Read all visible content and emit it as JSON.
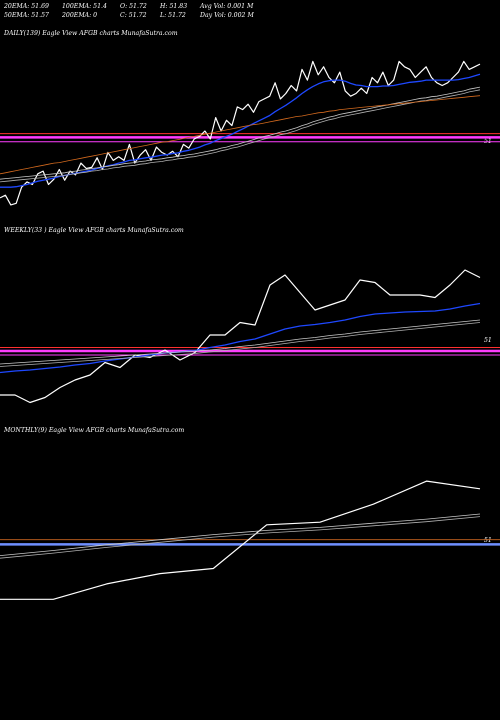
{
  "header": {
    "row1": [
      "20EMA: 51.69",
      "100EMA: 51.4",
      "O: 51.72",
      "H: 51.83",
      "Avg Vol: 0.001 M"
    ],
    "row2": [
      "50EMA: 51.57",
      "200EMA: 0",
      "C: 51.72",
      "L: 51.72",
      "Day Vol: 0.002  M"
    ]
  },
  "colors": {
    "background": "#000000",
    "price": "#ffffff",
    "ema_fast": "#1e48ff",
    "ema_mid": "#c8c8c8",
    "ema_slow": "#b0b0b0",
    "ema_long": "#d2691e",
    "level_magenta": "#ff3dff",
    "level_red": "#ff3030",
    "level_blue": "#6f8fff",
    "level_orange": "#c86420"
  },
  "chart_data": [
    {
      "type": "line",
      "title": "DAILY(139) Eagle   View  AFGB charts MunafaSutra.com",
      "level_label": "51",
      "series": [
        {
          "role": "price",
          "color": "#ffffff",
          "width": 1.2,
          "values": [
            49.85,
            49.9,
            49.72,
            49.75,
            50.05,
            50.15,
            50.1,
            50.3,
            50.35,
            50.1,
            50.2,
            50.38,
            50.18,
            50.35,
            50.28,
            50.5,
            50.4,
            50.42,
            50.6,
            50.38,
            50.7,
            50.55,
            50.62,
            50.55,
            50.85,
            50.5,
            50.65,
            50.75,
            50.55,
            50.8,
            50.7,
            50.65,
            50.72,
            50.62,
            50.85,
            50.78,
            50.95,
            51.0,
            51.1,
            50.95,
            51.35,
            51.1,
            51.3,
            51.2,
            51.55,
            51.5,
            51.6,
            51.45,
            51.65,
            51.7,
            51.75,
            52.0,
            51.7,
            51.8,
            51.95,
            51.85,
            52.25,
            52.05,
            52.4,
            52.15,
            52.3,
            52.1,
            52.0,
            52.2,
            51.85,
            51.75,
            51.8,
            51.9,
            51.8,
            52.1,
            52.0,
            52.2,
            51.95,
            52.05,
            52.4,
            52.3,
            52.25,
            52.1,
            52.2,
            52.3,
            52.1,
            52.0,
            51.95,
            52.0,
            52.1,
            52.2,
            52.4,
            52.25,
            52.3,
            52.35
          ]
        },
        {
          "role": "ema_fast",
          "color": "#1e48ff",
          "width": 1.3,
          "values": [
            50.05,
            50.05,
            50.05,
            50.06,
            50.08,
            50.1,
            50.13,
            50.16,
            50.18,
            50.2,
            50.22,
            50.25,
            50.27,
            50.29,
            50.31,
            50.33,
            50.35,
            50.37,
            50.4,
            50.42,
            50.45,
            50.47,
            50.5,
            50.52,
            50.55,
            50.56,
            50.58,
            50.6,
            50.61,
            50.63,
            50.65,
            50.66,
            50.68,
            50.69,
            50.72,
            50.74,
            50.77,
            50.8,
            50.84,
            50.87,
            50.92,
            50.96,
            51.0,
            51.04,
            51.09,
            51.14,
            51.19,
            51.24,
            51.29,
            51.34,
            51.39,
            51.46,
            51.52,
            51.58,
            51.65,
            51.72,
            51.8,
            51.87,
            51.93,
            51.98,
            52.02,
            52.04,
            52.05,
            52.05,
            52.03,
            51.99,
            51.96,
            51.95,
            51.93,
            51.93,
            51.93,
            51.94,
            51.94,
            51.95,
            51.97,
            51.99,
            52.01,
            52.02,
            52.03,
            52.05,
            52.05,
            52.05,
            52.05,
            52.05,
            52.05,
            52.06,
            52.08,
            52.1,
            52.13,
            52.16
          ]
        },
        {
          "role": "ema_mid",
          "color": "#c8c8c8",
          "width": 0.8,
          "values": [
            50.2,
            50.21,
            50.22,
            50.23,
            50.24,
            50.25,
            50.26,
            50.27,
            50.28,
            50.29,
            50.3,
            50.31,
            50.32,
            50.34,
            50.35,
            50.37,
            50.38,
            50.4,
            50.41,
            50.43,
            50.44,
            50.46,
            50.47,
            50.49,
            50.5,
            50.51,
            50.53,
            50.54,
            50.56,
            50.57,
            50.58,
            50.6,
            50.61,
            50.63,
            50.64,
            50.66,
            50.67,
            50.69,
            50.71,
            50.73,
            50.75,
            50.78,
            50.8,
            50.83,
            50.85,
            50.88,
            50.91,
            50.94,
            50.97,
            51.0,
            51.02,
            51.05,
            51.08,
            51.1,
            51.13,
            51.16,
            51.2,
            51.23,
            51.27,
            51.3,
            51.33,
            51.36,
            51.38,
            51.41,
            51.43,
            51.45,
            51.47,
            51.49,
            51.51,
            51.53,
            51.55,
            51.57,
            51.59,
            51.61,
            51.63,
            51.65,
            51.67,
            51.69,
            51.71,
            51.72,
            51.74,
            51.75,
            51.77,
            51.79,
            51.81,
            51.83,
            51.85,
            51.88,
            51.9,
            51.92
          ]
        },
        {
          "role": "ema_slow",
          "color": "#b0b0b0",
          "width": 0.8,
          "values": [
            50.15,
            50.16,
            50.17,
            50.18,
            50.19,
            50.2,
            50.21,
            50.22,
            50.23,
            50.24,
            50.25,
            50.26,
            50.27,
            50.29,
            50.3,
            50.32,
            50.33,
            50.35,
            50.36,
            50.38,
            50.39,
            50.41,
            50.42,
            50.44,
            50.45,
            50.46,
            50.48,
            50.49,
            50.51,
            50.52,
            50.53,
            50.55,
            50.56,
            50.58,
            50.59,
            50.61,
            50.62,
            50.64,
            50.66,
            50.68,
            50.7,
            50.73,
            50.75,
            50.78,
            50.8,
            50.83,
            50.86,
            50.89,
            50.92,
            50.95,
            50.97,
            51.0,
            51.03,
            51.05,
            51.08,
            51.11,
            51.15,
            51.18,
            51.22,
            51.25,
            51.28,
            51.31,
            51.33,
            51.36,
            51.38,
            51.4,
            51.42,
            51.44,
            51.46,
            51.48,
            51.5,
            51.52,
            51.54,
            51.56,
            51.58,
            51.6,
            51.62,
            51.64,
            51.66,
            51.67,
            51.69,
            51.7,
            51.72,
            51.74,
            51.76,
            51.78,
            51.8,
            51.83,
            51.85,
            51.87
          ]
        },
        {
          "role": "ema_long",
          "color": "#d2691e",
          "width": 0.8,
          "values": [
            50.3,
            50.32,
            50.34,
            50.36,
            50.38,
            50.4,
            50.42,
            50.44,
            50.46,
            50.48,
            50.5,
            50.51,
            50.53,
            50.55,
            50.57,
            50.59,
            50.61,
            50.63,
            50.65,
            50.67,
            50.69,
            50.71,
            50.73,
            50.75,
            50.77,
            50.79,
            50.81,
            50.83,
            50.85,
            50.87,
            50.89,
            50.9,
            50.92,
            50.94,
            50.96,
            50.98,
            51.0,
            51.02,
            51.04,
            51.06,
            51.08,
            51.1,
            51.12,
            51.14,
            51.16,
            51.18,
            51.2,
            51.22,
            51.23,
            51.25,
            51.27,
            51.29,
            51.31,
            51.33,
            51.35,
            51.37,
            51.38,
            51.4,
            51.42,
            51.44,
            51.45,
            51.47,
            51.48,
            51.5,
            51.51,
            51.52,
            51.53,
            51.54,
            51.55,
            51.56,
            51.57,
            51.58,
            51.59,
            51.6,
            51.61,
            51.62,
            51.63,
            51.64,
            51.65,
            51.66,
            51.67,
            51.68,
            51.69,
            51.7,
            51.71,
            51.72,
            51.73,
            51.74,
            51.75,
            51.76
          ]
        }
      ],
      "levels": [
        {
          "value": 51.05,
          "color": "#ff3030",
          "width": 1
        },
        {
          "value": 50.98,
          "color": "#ff3dff",
          "width": 2.5
        },
        {
          "value": 50.9,
          "color": "#ff3dff",
          "width": 1
        }
      ],
      "ylim": [
        49.4,
        52.8
      ]
    },
    {
      "type": "line",
      "title": "WEEKLY(33                         ) Eagle   View  AFGB charts MunafaSutra.com",
      "level_label": "51",
      "series": [
        {
          "role": "price",
          "color": "#ffffff",
          "width": 1.2,
          "values": [
            50.1,
            50.1,
            49.95,
            50.05,
            50.25,
            50.4,
            50.5,
            50.75,
            50.65,
            50.9,
            50.85,
            51.0,
            50.8,
            50.95,
            51.3,
            51.3,
            51.55,
            51.5,
            52.3,
            52.5,
            52.15,
            51.8,
            51.9,
            52.0,
            52.4,
            52.35,
            52.1,
            52.1,
            52.1,
            52.05,
            52.3,
            52.6,
            52.45
          ]
        },
        {
          "role": "ema_fast",
          "color": "#1e48ff",
          "width": 1.3,
          "values": [
            50.55,
            50.58,
            50.6,
            50.63,
            50.66,
            50.7,
            50.73,
            50.78,
            50.82,
            50.86,
            50.9,
            50.94,
            50.96,
            50.99,
            51.05,
            51.1,
            51.17,
            51.22,
            51.32,
            51.42,
            51.48,
            51.51,
            51.55,
            51.6,
            51.67,
            51.72,
            51.74,
            51.76,
            51.77,
            51.78,
            51.82,
            51.88,
            51.93
          ]
        },
        {
          "role": "ema_mid",
          "color": "#c8c8c8",
          "width": 0.8,
          "values": [
            50.72,
            50.74,
            50.76,
            50.78,
            50.8,
            50.82,
            50.84,
            50.86,
            50.88,
            50.9,
            50.92,
            50.94,
            50.96,
            50.98,
            51.0,
            51.03,
            51.07,
            51.1,
            51.14,
            51.18,
            51.22,
            51.25,
            51.29,
            51.32,
            51.36,
            51.39,
            51.42,
            51.45,
            51.48,
            51.51,
            51.54,
            51.57,
            51.6
          ]
        },
        {
          "role": "ema_slow",
          "color": "#b0b0b0",
          "width": 0.8,
          "values": [
            50.67,
            50.69,
            50.71,
            50.73,
            50.75,
            50.77,
            50.79,
            50.81,
            50.83,
            50.85,
            50.87,
            50.89,
            50.91,
            50.93,
            50.96,
            50.99,
            51.02,
            51.05,
            51.09,
            51.13,
            51.17,
            51.2,
            51.24,
            51.27,
            51.31,
            51.34,
            51.37,
            51.4,
            51.43,
            51.46,
            51.49,
            51.52,
            51.55
          ]
        }
      ],
      "levels": [
        {
          "value": 51.05,
          "color": "#ff3030",
          "width": 1
        },
        {
          "value": 50.98,
          "color": "#ff3dff",
          "width": 2.5
        },
        {
          "value": 50.9,
          "color": "#ff3dff",
          "width": 1
        }
      ],
      "ylim": [
        49.6,
        53.2
      ]
    },
    {
      "type": "line",
      "title": "MONTHLY(9) Eagle   View  AFGB charts MunafaSutra.com",
      "level_label": "51",
      "series": [
        {
          "role": "price",
          "color": "#ffffff",
          "width": 1.2,
          "values": [
            49.9,
            49.9,
            50.2,
            50.4,
            50.5,
            51.35,
            51.4,
            51.75,
            52.2,
            52.05
          ]
        },
        {
          "role": "ema_mid",
          "color": "#c8c8c8",
          "width": 0.8,
          "values": [
            50.75,
            50.85,
            50.96,
            51.06,
            51.16,
            51.24,
            51.3,
            51.38,
            51.46,
            51.56
          ]
        },
        {
          "role": "ema_slow",
          "color": "#b0b0b0",
          "width": 0.8,
          "values": [
            50.7,
            50.8,
            50.91,
            51.01,
            51.11,
            51.19,
            51.25,
            51.33,
            51.41,
            51.51
          ]
        }
      ],
      "levels": [
        {
          "value": 51.06,
          "color": "#c86420",
          "width": 0.8
        },
        {
          "value": 50.97,
          "color": "#6f8fff",
          "width": 2.5
        }
      ],
      "ylim": [
        49.4,
        53.0
      ]
    }
  ]
}
